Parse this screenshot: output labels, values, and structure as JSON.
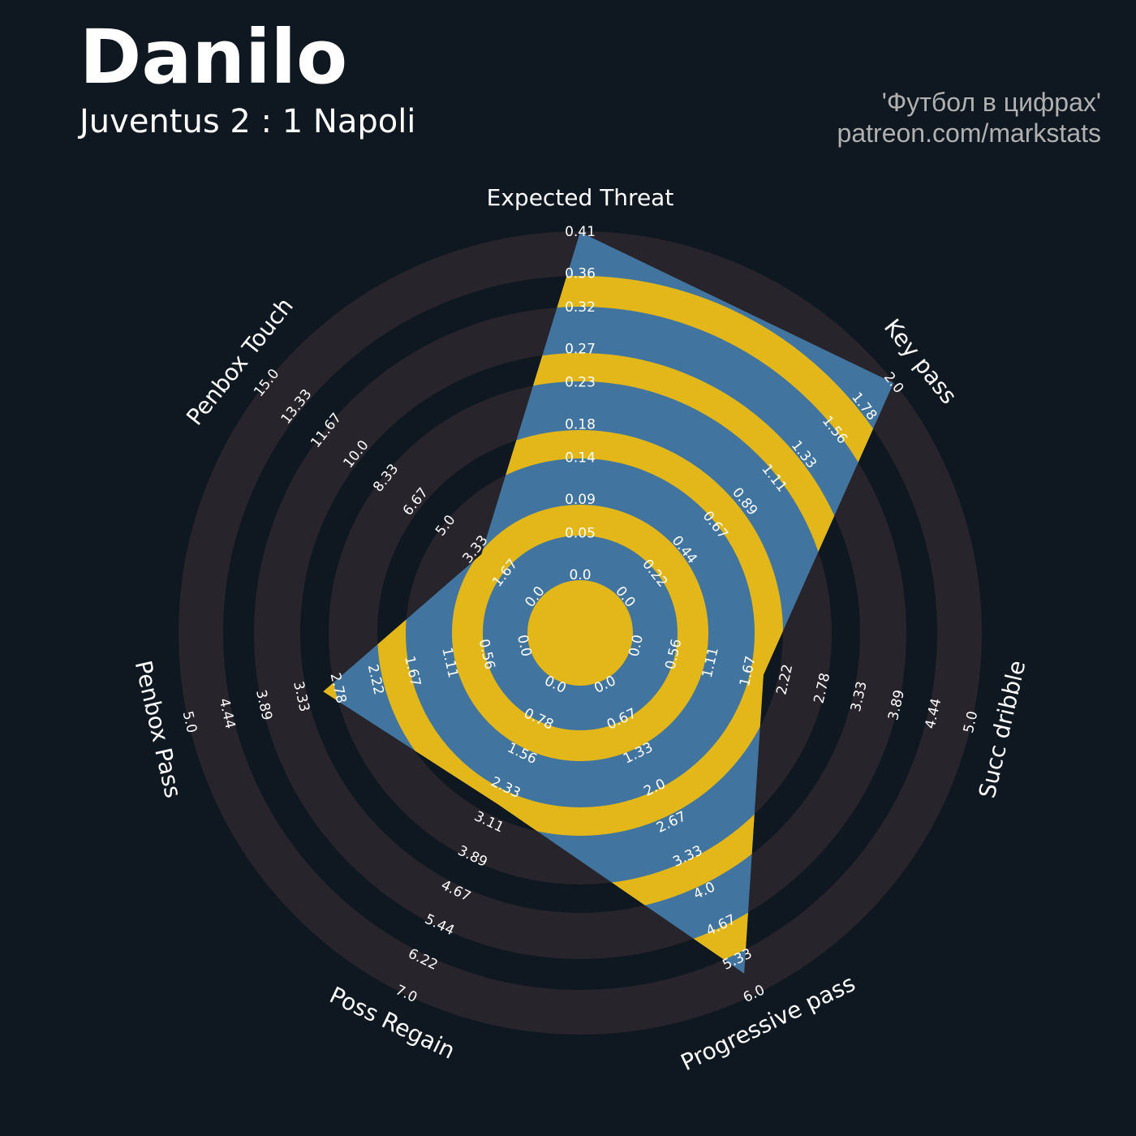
{
  "chart_data": {
    "type": "radar",
    "title": "Danilo",
    "subtitle": "Juventus 2 : 1 Napoli",
    "annotations": [
      "'Футбол в цифрах'",
      "patreon.com/markstats"
    ],
    "categories": [
      "Expected Threat",
      "Key pass",
      "Succ dribble",
      "Progressive pass",
      "Poss Regain",
      "Penbox Pass",
      "Penbox Touch"
    ],
    "values": [
      0.41,
      2.0,
      1.9,
      5.6,
      2.7,
      3.0,
      3.0
    ],
    "color": "#41759f",
    "ring_color": "#e3b71a",
    "outer_ring_color": "#28242b",
    "axes": [
      {
        "lim": [
          0,
          0.41
        ],
        "ticks": [
          {
            "value": 0,
            "label": "0.0"
          },
          0.05,
          0.09,
          0.14,
          0.18,
          0.23,
          0.27,
          0.32,
          0.36,
          0.41
        ]
      },
      {
        "lim": [
          0,
          2
        ],
        "ticks": [
          {
            "value": 0,
            "label": "0.0"
          },
          0.22,
          0.44,
          0.67,
          0.89,
          1.11,
          1.33,
          1.56,
          1.78,
          {
            "value": 2,
            "label": "2.0"
          }
        ]
      },
      {
        "lim": [
          0,
          5
        ],
        "ticks": [
          {
            "value": 0,
            "label": "0.0"
          },
          0.56,
          1.11,
          1.67,
          2.22,
          2.78,
          3.33,
          3.89,
          4.44,
          {
            "value": 5,
            "label": "5.0"
          }
        ]
      },
      {
        "lim": [
          0,
          6
        ],
        "ticks": [
          {
            "value": 0,
            "label": "0.0"
          },
          0.67,
          1.33,
          {
            "value": 2,
            "label": "2.0"
          },
          2.67,
          3.33,
          {
            "value": 4,
            "label": "4.0"
          },
          4.67,
          5.33,
          {
            "value": 6,
            "label": "6.0"
          }
        ]
      },
      {
        "lim": [
          0,
          7
        ],
        "ticks": [
          {
            "value": 0,
            "label": "0.0"
          },
          0.78,
          1.56,
          2.33,
          3.11,
          3.89,
          4.67,
          5.44,
          6.22,
          {
            "value": 7,
            "label": "7.0"
          }
        ]
      },
      {
        "lim": [
          0,
          5
        ],
        "ticks": [
          {
            "value": 0,
            "label": "0.0"
          },
          0.56,
          1.11,
          1.67,
          2.22,
          2.78,
          3.33,
          3.89,
          4.44,
          {
            "value": 5,
            "label": "5.0"
          }
        ]
      },
      {
        "lim": [
          0,
          15
        ],
        "ticks": [
          {
            "value": 0,
            "label": "0.0"
          },
          1.67,
          3.33,
          {
            "value": 5,
            "label": "5.0"
          },
          6.67,
          8.33,
          {
            "value": 10,
            "label": "10.0"
          },
          11.67,
          13.33,
          {
            "value": 15,
            "label": "15.0"
          }
        ]
      }
    ]
  }
}
